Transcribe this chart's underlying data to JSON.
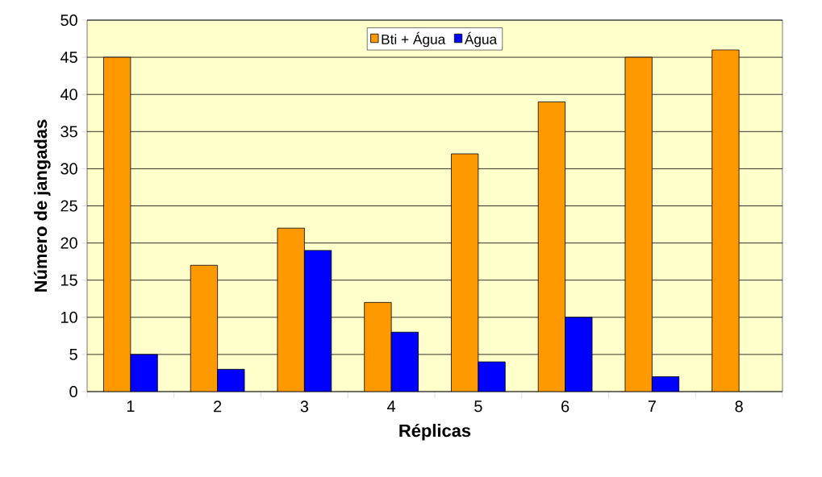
{
  "chart_data": {
    "type": "bar",
    "xlabel": "Réplicas",
    "ylabel": "Número de jangadas",
    "categories": [
      "1",
      "2",
      "3",
      "4",
      "5",
      "6",
      "7",
      "8"
    ],
    "series": [
      {
        "name": "Bti + Água",
        "color": "#ff9900",
        "values": [
          45,
          17,
          22,
          12,
          32,
          39,
          45,
          46
        ]
      },
      {
        "name": "Água",
        "color": "#0000ff",
        "values": [
          5,
          3,
          19,
          8,
          4,
          10,
          2,
          null
        ]
      }
    ],
    "ylim": [
      0,
      50
    ],
    "yticks": [
      0,
      5,
      10,
      15,
      20,
      25,
      30,
      35,
      40,
      45,
      50
    ],
    "grid": "y",
    "legend": "top"
  }
}
